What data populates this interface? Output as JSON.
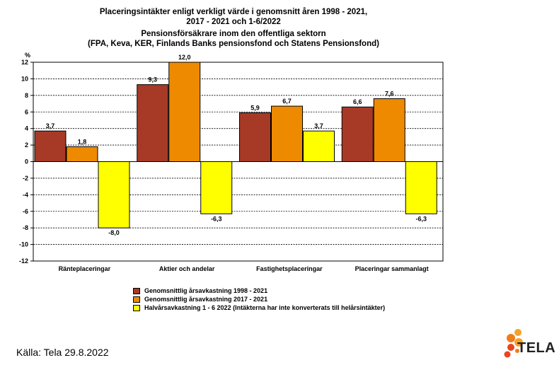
{
  "header": {
    "title_line1": "Placeringsintäkter enligt verkligt värde i genomsnitt åren 1998 - 2021,",
    "title_line2": "2017 - 2021 och 1-6/2022",
    "title_line3": "Pensionsförsäkrare inom den offentliga sektorn",
    "title_line4": "(FPA, Keva, KER, Finlands Banks pensionsfond och Statens Pensionsfond)"
  },
  "chart_data": {
    "type": "bar",
    "y_unit": "%",
    "ylim": [
      -12,
      12
    ],
    "yticks": [
      12,
      10,
      8,
      6,
      4,
      2,
      0,
      -2,
      -4,
      -6,
      -8,
      -10,
      -12
    ],
    "grid": true,
    "categories": [
      "Ränteplaceringar",
      "Aktier och andelar",
      "Fastighetsplaceringar",
      "Placeringar sammanlagt"
    ],
    "series": [
      {
        "name": "Genomsnittlig årsavkastning 1998 - 2021",
        "color": "#a63a26",
        "values": [
          3.7,
          9.3,
          5.9,
          6.6
        ],
        "labels": [
          "3,7",
          "9,3",
          "5,9",
          "6,6"
        ]
      },
      {
        "name": "Genomsnittlig årsavkastning 2017 - 2021",
        "color": "#ee8a00",
        "values": [
          1.8,
          12.0,
          6.7,
          7.6
        ],
        "labels": [
          "1,8",
          "12,0",
          "6,7",
          "7,6"
        ]
      },
      {
        "name": "Halvårsavkastning 1 - 6 2022 (Intäkterna har inte konverterats till helårsintäkter)",
        "color": "#ffff00",
        "values": [
          -8.0,
          -6.3,
          3.7,
          -6.3
        ],
        "labels": [
          "-8,0",
          "-6,3",
          "3,7",
          "-6,3"
        ]
      }
    ],
    "legend_position": "bottom"
  },
  "footer": {
    "source": "Källa: Tela 29.8.2022",
    "logo_text": "TELA"
  }
}
